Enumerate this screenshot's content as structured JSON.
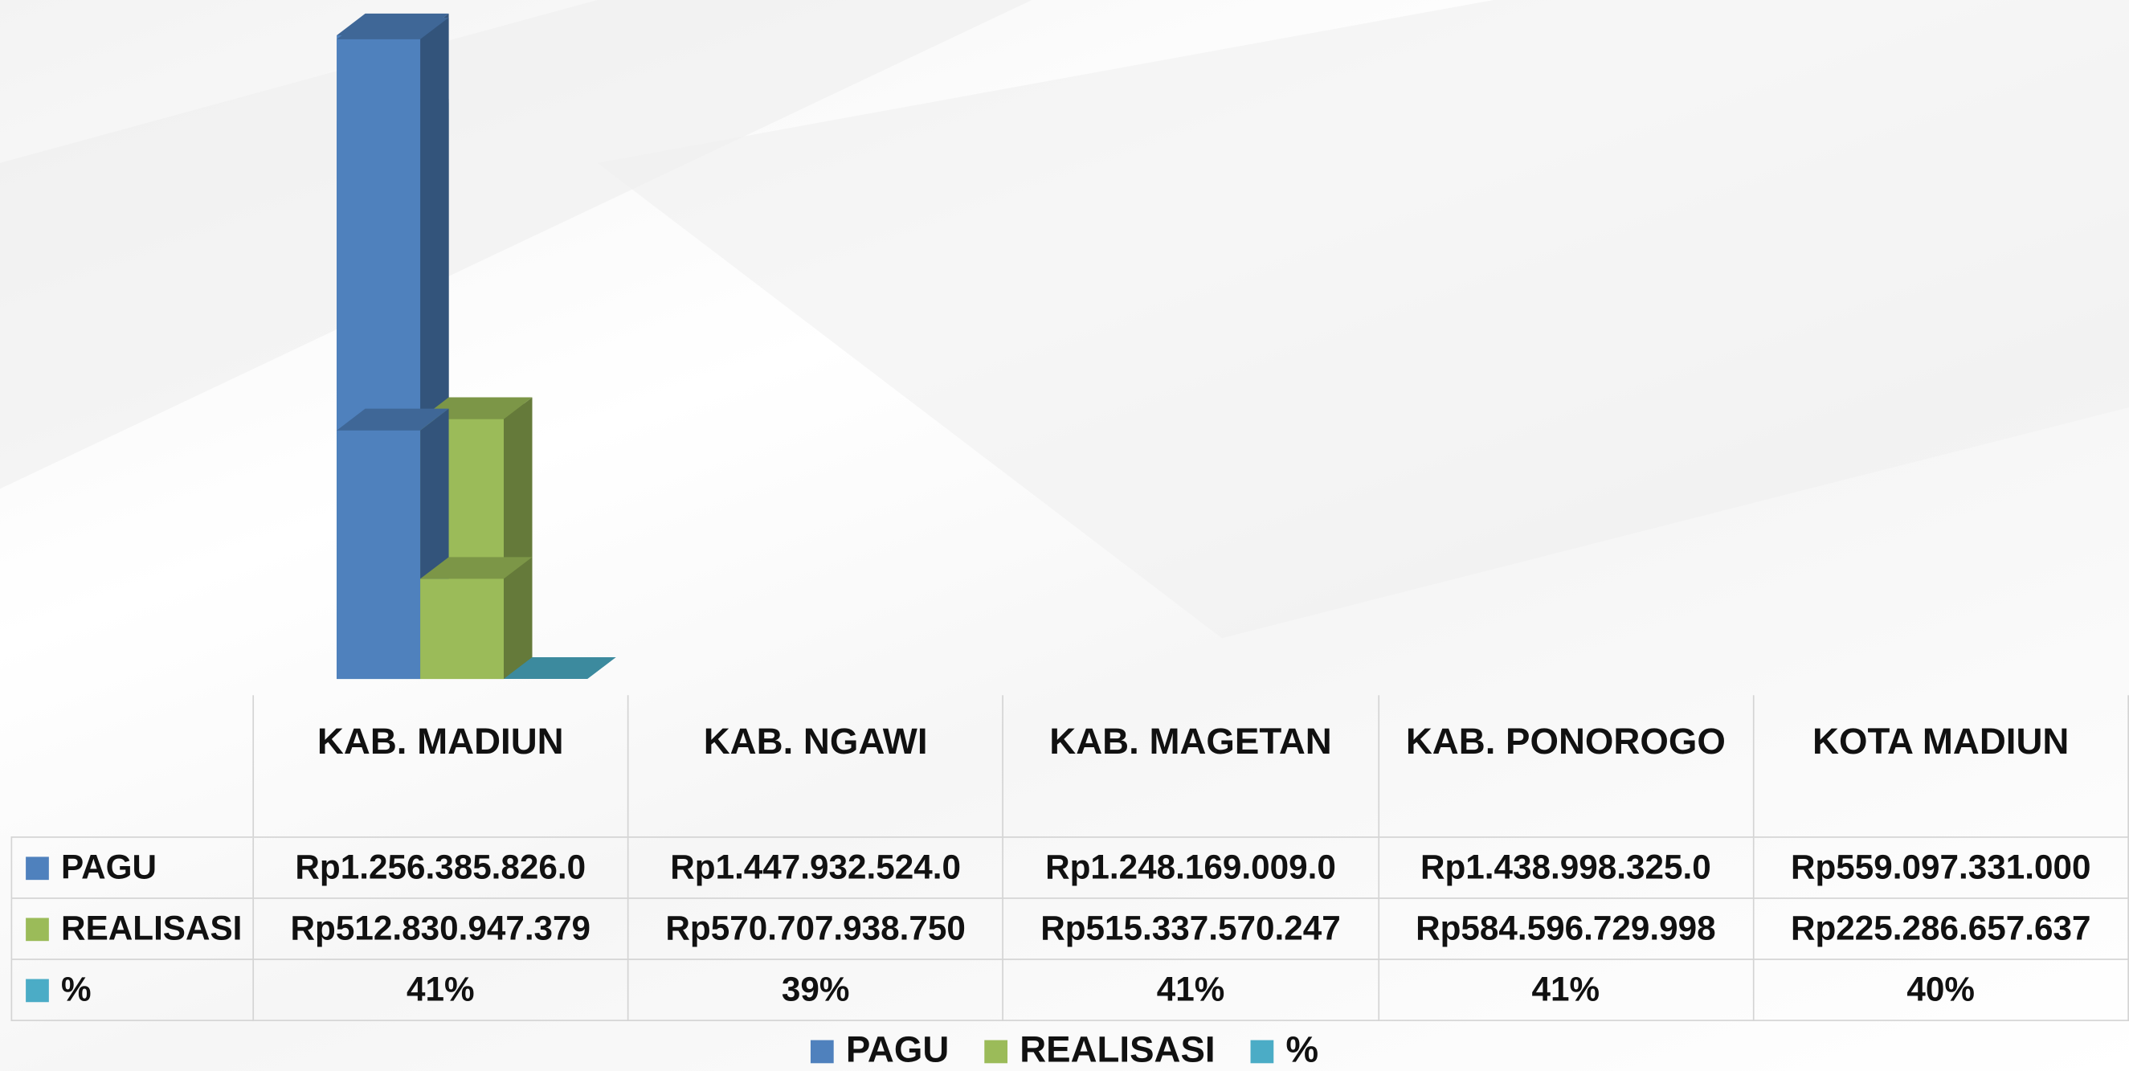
{
  "chart_data": {
    "type": "bar3d",
    "categories": [
      "KAB. MADIUN",
      "KAB. NGAWI",
      "KAB. MAGETAN",
      "KAB. PONOROGO",
      "KOTA MADIUN"
    ],
    "series": [
      {
        "name": "PAGU",
        "color": "#4f81bd",
        "values": [
          1256385826000,
          1447932524000,
          1248169009000,
          1438998325000,
          559097331000
        ],
        "value_labels": [
          "Rp1.256.385.826.0",
          "Rp1.447.932.524.0",
          "Rp1.248.169.009.0",
          "Rp1.438.998.325.0",
          "Rp559.097.331.000"
        ]
      },
      {
        "name": "REALISASI",
        "color": "#9bbb59",
        "values": [
          512830947379,
          570707938750,
          515337570247,
          584596729998,
          225286657637
        ],
        "value_labels": [
          "Rp512.830.947.379",
          "Rp570.707.938.750",
          "Rp515.337.570.247",
          "Rp584.596.729.998",
          "Rp225.286.657.637"
        ]
      },
      {
        "name": "%",
        "color": "#4bacc6",
        "values": [
          41,
          39,
          41,
          41,
          40
        ],
        "value_labels": [
          "41%",
          "39%",
          "41%",
          "41%",
          "40%"
        ]
      }
    ]
  }
}
